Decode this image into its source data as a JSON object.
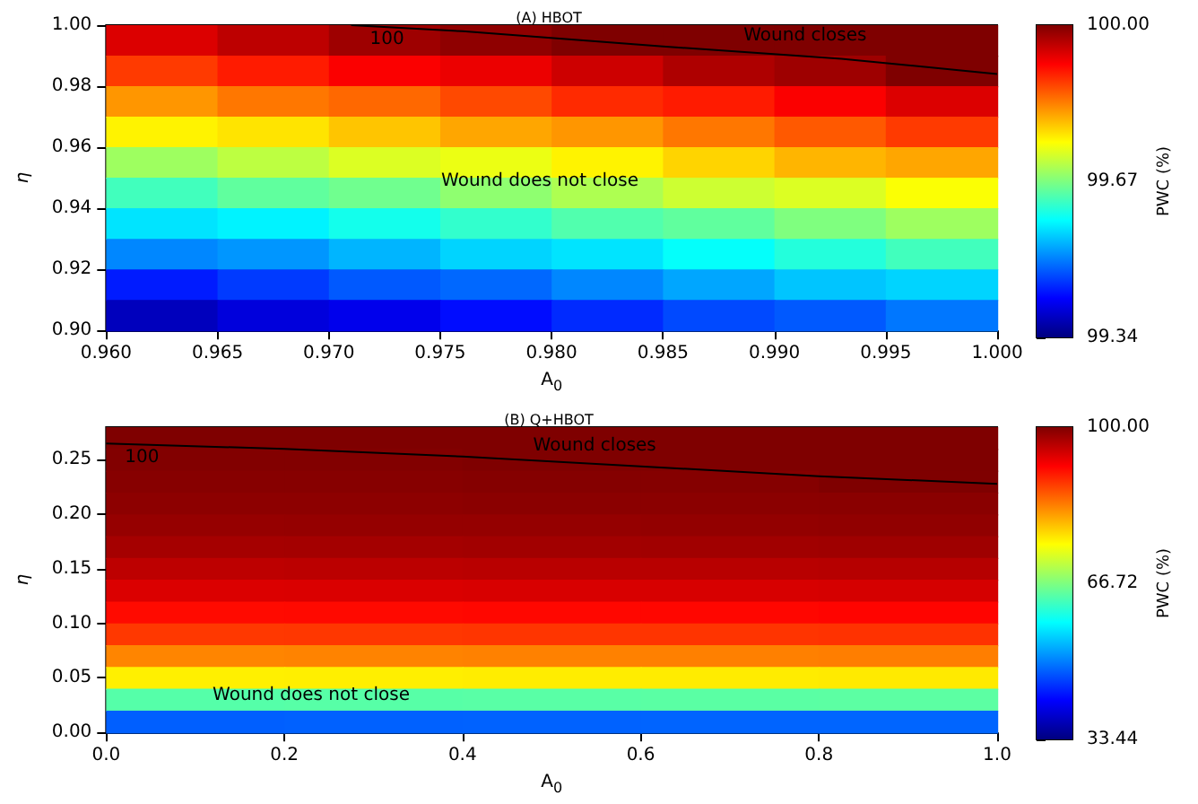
{
  "chart_data": [
    {
      "type": "heatmap",
      "title": "(A) HBOT",
      "xlabel": "A$_{0}$",
      "ylabel": "η",
      "clabel": "PWC (%)",
      "xlim": [
        0.96,
        1.0
      ],
      "xticks": [
        {
          "value": 0.96,
          "label": "0.960"
        },
        0.965,
        {
          "value": 0.97,
          "label": "0.970"
        },
        0.975,
        {
          "value": 0.98,
          "label": "0.980"
        },
        0.985,
        {
          "value": 0.99,
          "label": "0.990"
        },
        0.995,
        {
          "value": 1.0,
          "label": "1.000"
        }
      ],
      "ylim": [
        0.9,
        1.0
      ],
      "yticks": [
        {
          "value": 0.9,
          "label": "0.90"
        },
        0.92,
        0.94,
        0.96,
        0.98,
        {
          "value": 1.0,
          "label": "1.00"
        }
      ],
      "clim": [
        99.34,
        100
      ],
      "cticks": [
        99.34,
        99.67,
        {
          "value": 100,
          "label": "100.00"
        }
      ],
      "cells": [
        [
          99.94,
          99.96,
          99.98,
          99.99,
          100,
          100,
          100,
          100
        ],
        [
          99.88,
          99.9,
          99.92,
          99.93,
          99.95,
          99.97,
          99.98,
          100
        ],
        [
          99.82,
          99.84,
          99.85,
          99.87,
          99.89,
          99.9,
          99.92,
          99.94
        ],
        [
          99.76,
          99.77,
          99.79,
          99.81,
          99.82,
          99.84,
          99.86,
          99.88
        ],
        [
          99.69,
          99.71,
          99.73,
          99.74,
          99.76,
          99.78,
          99.8,
          99.81
        ],
        [
          99.63,
          99.65,
          99.66,
          99.68,
          99.7,
          99.72,
          99.73,
          99.75
        ],
        [
          99.57,
          99.58,
          99.6,
          99.62,
          99.64,
          99.65,
          99.67,
          99.69
        ],
        [
          99.51,
          99.52,
          99.54,
          99.56,
          99.57,
          99.59,
          99.61,
          99.63
        ],
        [
          99.44,
          99.46,
          99.48,
          99.49,
          99.51,
          99.53,
          99.55,
          99.56
        ],
        [
          99.38,
          99.4,
          99.41,
          99.43,
          99.45,
          99.47,
          99.48,
          99.5
        ]
      ],
      "series": [
        {
          "type": "line",
          "name": "100",
          "color": "#000000",
          "x": [
            0.971,
            0.976,
            0.985,
            0.993,
            1.0
          ],
          "values": [
            1.0,
            0.998,
            0.993,
            0.989,
            0.984
          ]
        }
      ],
      "annotations": [
        "Wound closes",
        "Wound does not close"
      ]
    },
    {
      "type": "heatmap",
      "title": "(B) Q+HBOT",
      "xlabel": "A$_{0}$",
      "ylabel": "η",
      "clabel": "PWC (%)",
      "xlim": [
        0,
        1
      ],
      "xticks": [
        {
          "value": 0,
          "label": "0.0"
        },
        0.2,
        0.4,
        0.6,
        0.8,
        {
          "value": 1,
          "label": "1.0"
        }
      ],
      "ylim": [
        0,
        0.28
      ],
      "yticks": [
        {
          "value": 0,
          "label": "0.00"
        },
        0.05,
        {
          "value": 0.1,
          "label": "0.10"
        },
        0.15,
        {
          "value": 0.2,
          "label": "0.20"
        },
        0.25
      ],
      "clim": [
        33.44,
        100
      ],
      "cticks": [
        33.44,
        66.72,
        {
          "value": 100,
          "label": "100.00"
        }
      ],
      "cells": [
        [
          100,
          100,
          100,
          100,
          100
        ],
        [
          99.8,
          99.8,
          100,
          100,
          100
        ],
        [
          99.5,
          99.5,
          99.6,
          99.6,
          100
        ],
        [
          99.1,
          99.1,
          99.2,
          99.2,
          99.3
        ],
        [
          98.5,
          98.6,
          98.6,
          98.7,
          98.8
        ],
        [
          97.5,
          97.6,
          97.7,
          97.8,
          97.9
        ],
        [
          96.0,
          96.1,
          96.2,
          96.3,
          96.4
        ],
        [
          94.0,
          94.1,
          94.2,
          94.3,
          94.4
        ],
        [
          91.0,
          91.1,
          91.2,
          91.3,
          91.4
        ],
        [
          88.0,
          88.1,
          88.2,
          88.3,
          88.4
        ],
        [
          83.0,
          83.1,
          83.2,
          83.3,
          83.4
        ],
        [
          76.0,
          76.1,
          76.2,
          76.3,
          76.4
        ],
        [
          64.0,
          64.1,
          64.2,
          64.3,
          64.4
        ],
        [
          48.0,
          48.1,
          48.2,
          48.3,
          48.4
        ]
      ],
      "series": [
        {
          "type": "line",
          "name": "100",
          "color": "#000000",
          "x": [
            0,
            0.2,
            0.4,
            0.6,
            0.8,
            1.0
          ],
          "values": [
            0.265,
            0.26,
            0.253,
            0.244,
            0.235,
            0.228
          ]
        }
      ],
      "annotations": [
        "Wound closes",
        "Wound does not close"
      ]
    }
  ]
}
